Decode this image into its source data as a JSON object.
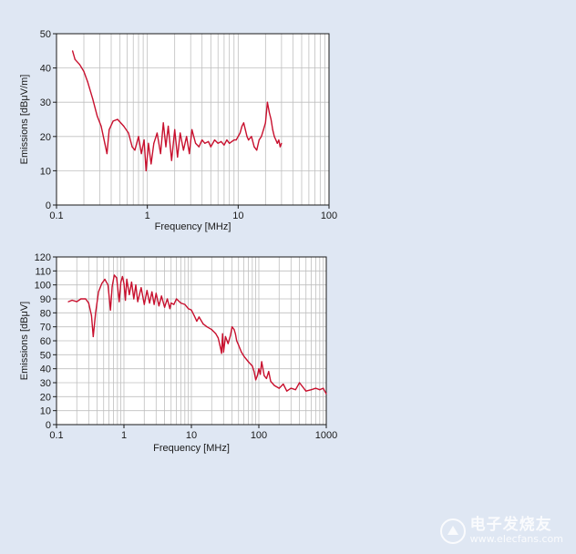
{
  "chart_data": [
    {
      "type": "line",
      "title": "",
      "xlabel": "Frequency [MHz]",
      "ylabel": "Emissions [dBμV/m]",
      "xscale": "log",
      "xlim": [
        0.1,
        100
      ],
      "ylim": [
        0,
        50
      ],
      "x_ticks": [
        0.1,
        1,
        10,
        100
      ],
      "x_tick_labels": [
        "0.1",
        "1",
        "10",
        "100"
      ],
      "y_ticks": [
        0,
        10,
        20,
        30,
        40,
        50
      ],
      "y_tick_labels": [
        "0",
        "10",
        "20",
        "30",
        "40",
        "50"
      ],
      "grid": true,
      "color": "#c8102e",
      "series": [
        {
          "x": [
            0.15,
            0.16,
            0.18,
            0.2,
            0.22,
            0.25,
            0.28,
            0.31,
            0.34,
            0.36,
            0.38,
            0.42,
            0.47,
            0.55,
            0.62,
            0.68,
            0.73,
            0.8,
            0.86,
            0.92,
            0.97,
            1.03,
            1.1,
            1.18,
            1.28,
            1.4,
            1.5,
            1.6,
            1.7,
            1.85,
            2.0,
            2.15,
            2.3,
            2.5,
            2.7,
            2.9,
            3.1,
            3.4,
            3.7,
            4.0,
            4.3,
            4.7,
            5.0,
            5.5,
            6.0,
            6.5,
            7.0,
            7.5,
            8.0,
            8.5,
            9.0,
            9.5,
            10,
            10.5,
            11,
            11.5,
            12,
            12.5,
            13,
            14,
            15,
            16,
            17,
            18,
            19,
            20,
            21,
            22,
            23,
            24,
            25,
            26,
            27,
            28,
            29,
            30
          ],
          "y": [
            45,
            42.5,
            41,
            39,
            36,
            31,
            26,
            23,
            18,
            15,
            22,
            24.5,
            25,
            23,
            21,
            17,
            16,
            20,
            15,
            19,
            10,
            18,
            12,
            18,
            21,
            15,
            24,
            17,
            23,
            13,
            22,
            14,
            21,
            16,
            20,
            15,
            22,
            18,
            17,
            19,
            18,
            18.5,
            17,
            19,
            18,
            18.5,
            17.5,
            19,
            18,
            18.5,
            19,
            19,
            20,
            21,
            23,
            24,
            22,
            20,
            19,
            20,
            17,
            16,
            19,
            20,
            22,
            24,
            30,
            27,
            25,
            22,
            20,
            19,
            18,
            19,
            17,
            18
          ]
        }
      ]
    },
    {
      "type": "line",
      "title": "",
      "xlabel": "Frequency [MHz]",
      "ylabel": "Emissions [dBμV]",
      "xscale": "log",
      "xlim": [
        0.1,
        1000
      ],
      "ylim": [
        0,
        120
      ],
      "x_ticks": [
        0.1,
        1,
        10,
        100,
        1000
      ],
      "x_tick_labels": [
        "0.1",
        "1",
        "10",
        "100",
        "1000"
      ],
      "y_ticks": [
        0,
        10,
        20,
        30,
        40,
        50,
        60,
        70,
        80,
        90,
        100,
        110,
        120
      ],
      "y_tick_labels": [
        "0",
        "10",
        "20",
        "30",
        "40",
        "50",
        "60",
        "70",
        "80",
        "90",
        "100",
        "110",
        "120"
      ],
      "grid": true,
      "color": "#c8102e",
      "series": [
        {
          "x": [
            0.15,
            0.17,
            0.2,
            0.23,
            0.27,
            0.3,
            0.33,
            0.35,
            0.38,
            0.42,
            0.47,
            0.52,
            0.58,
            0.63,
            0.67,
            0.72,
            0.78,
            0.85,
            0.9,
            0.95,
            1.0,
            1.05,
            1.1,
            1.2,
            1.3,
            1.4,
            1.5,
            1.6,
            1.8,
            2.0,
            2.2,
            2.4,
            2.6,
            2.8,
            3.0,
            3.3,
            3.6,
            4.0,
            4.4,
            4.8,
            5.0,
            5.5,
            6.0,
            7,
            8,
            9,
            10,
            11,
            12,
            13,
            15,
            17,
            20,
            23,
            25,
            27,
            28,
            29,
            30,
            32,
            35,
            38,
            40,
            43,
            45,
            47,
            50,
            55,
            60,
            70,
            80,
            85,
            90,
            95,
            100,
            105,
            110,
            120,
            130,
            140,
            150,
            170,
            200,
            230,
            260,
            300,
            350,
            400,
            500,
            600,
            700,
            800,
            900,
            1000
          ],
          "y": [
            88,
            89,
            88,
            90,
            90,
            87,
            78,
            63,
            80,
            95,
            101,
            104,
            100,
            82,
            99,
            107,
            105,
            88,
            102,
            106,
            101,
            89,
            104,
            93,
            102,
            90,
            100,
            88,
            98,
            86,
            96,
            87,
            95,
            86,
            94,
            85,
            92,
            84,
            90,
            83,
            87,
            86,
            90,
            87,
            86,
            83,
            82,
            78,
            74,
            77,
            72,
            70,
            68,
            65,
            62,
            55,
            51,
            65,
            52,
            63,
            58,
            64,
            70,
            68,
            65,
            60,
            57,
            52,
            49,
            45,
            42,
            38,
            32,
            35,
            40,
            36,
            45,
            35,
            33,
            38,
            31,
            28,
            26,
            29,
            24,
            26,
            25,
            30,
            24,
            25,
            26,
            25,
            26,
            22
          ]
        }
      ]
    }
  ],
  "watermark": {
    "main": "电子发烧友",
    "sub": "www.elecfans.com"
  }
}
